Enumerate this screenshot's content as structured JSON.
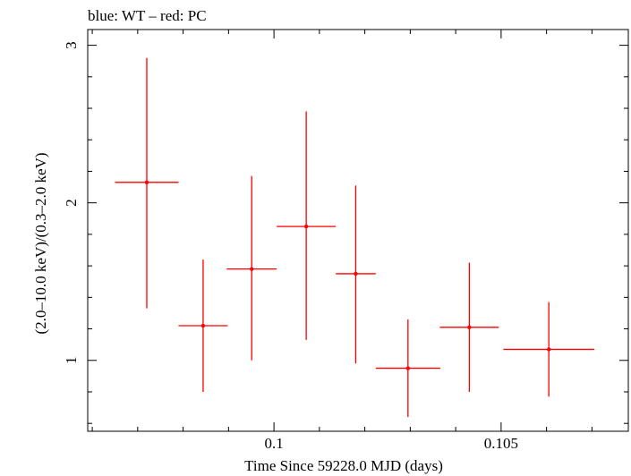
{
  "chart_data": {
    "type": "scatter",
    "title": "blue: WT – red: PC",
    "xlabel": "Time Since 59228.0 MJD (days)",
    "ylabel": "(2.0–10.0 keV)/(0.3–2.0 keV)",
    "xlim": [
      0.0959,
      0.1078
    ],
    "ylim": [
      0.55,
      3.1
    ],
    "x_ticks": [
      0.1,
      0.105
    ],
    "x_tick_labels": [
      "0.1",
      "0.105"
    ],
    "y_ticks": [
      1,
      2,
      3
    ],
    "y_tick_labels": [
      "1",
      "2",
      "3"
    ],
    "grid": false,
    "colors": {
      "series_pc": "#ff0000",
      "axes": "#000000"
    },
    "series": [
      {
        "color": "#ff0000",
        "points": [
          {
            "x": 0.0972,
            "xerr": 0.0007,
            "y": 2.13,
            "yerr_low": 0.8,
            "yerr_high": 0.79
          },
          {
            "x": 0.09844,
            "xerr": 0.00054,
            "y": 1.22,
            "yerr_low": 0.42,
            "yerr_high": 0.42
          },
          {
            "x": 0.09951,
            "xerr": 0.00055,
            "y": 1.58,
            "yerr_low": 0.58,
            "yerr_high": 0.59
          },
          {
            "x": 0.10071,
            "xerr": 0.00065,
            "y": 1.85,
            "yerr_low": 0.72,
            "yerr_high": 0.73
          },
          {
            "x": 0.1018,
            "xerr": 0.00044,
            "y": 1.55,
            "yerr_low": 0.57,
            "yerr_high": 0.56
          },
          {
            "x": 0.10295,
            "xerr": 0.00071,
            "y": 0.95,
            "yerr_low": 0.31,
            "yerr_high": 0.31
          },
          {
            "x": 0.1043,
            "xerr": 0.00065,
            "y": 1.21,
            "yerr_low": 0.41,
            "yerr_high": 0.41
          },
          {
            "x": 0.10605,
            "xerr": 0.001,
            "y": 1.07,
            "yerr_low": 0.3,
            "yerr_high": 0.3
          }
        ]
      }
    ]
  }
}
